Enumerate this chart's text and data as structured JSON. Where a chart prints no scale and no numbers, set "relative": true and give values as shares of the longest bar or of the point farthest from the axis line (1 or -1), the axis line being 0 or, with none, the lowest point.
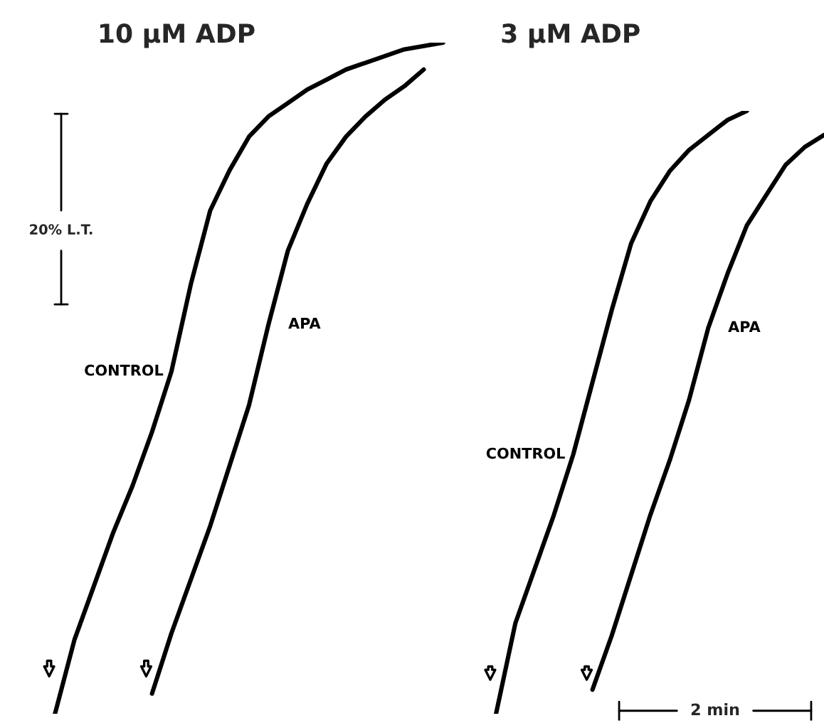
{
  "chart_data": [
    {
      "type": "line",
      "title": "10 μM ADP",
      "relative": true,
      "legend": false,
      "annotations": [
        "20% L.T."
      ],
      "categories": [
        null,
        null,
        null,
        null,
        null,
        null,
        null,
        null,
        null,
        null,
        null,
        null,
        null,
        null,
        null,
        null,
        null,
        null,
        null,
        null,
        null,
        null,
        null
      ],
      "series": [
        {
          "name": "CONTROL",
          "color": "#000000",
          "values": [
            null,
            0.0,
            0.11,
            0.19,
            0.27,
            0.34,
            0.42,
            0.51,
            0.64,
            0.75,
            0.81,
            0.86,
            0.89,
            0.91,
            0.93,
            0.945,
            0.96,
            0.97,
            0.98,
            0.99,
            0.995,
            1.0,
            null
          ]
        },
        {
          "name": "APA",
          "color": "#000000",
          "values": [
            null,
            null,
            null,
            null,
            null,
            null,
            0.03,
            0.12,
            0.2,
            0.28,
            0.37,
            0.46,
            0.58,
            0.69,
            0.76,
            0.82,
            0.86,
            0.89,
            0.915,
            0.935,
            0.96,
            null,
            null
          ]
        }
      ]
    },
    {
      "type": "line",
      "title": "3 μM ADP",
      "relative": true,
      "legend": false,
      "annotations": [
        "2 min"
      ],
      "categories": [
        null,
        null,
        null,
        null,
        null,
        null,
        null,
        null,
        null,
        null,
        null,
        null,
        null,
        null,
        null,
        null,
        null,
        null,
        null
      ],
      "series": [
        {
          "name": "CONTROL",
          "color": "#000000",
          "values": [
            null,
            0.0,
            0.15,
            0.24,
            0.33,
            0.43,
            0.55,
            0.67,
            0.78,
            0.85,
            0.9,
            0.935,
            0.96,
            0.985,
            1.0,
            null,
            null,
            null,
            null
          ]
        },
        {
          "name": "APA",
          "color": "#000000",
          "values": [
            null,
            null,
            null,
            null,
            null,
            null,
            0.04,
            0.13,
            0.23,
            0.33,
            0.42,
            0.52,
            0.64,
            0.73,
            0.81,
            0.86,
            0.91,
            0.94,
            0.96
          ]
        }
      ]
    }
  ]
}
